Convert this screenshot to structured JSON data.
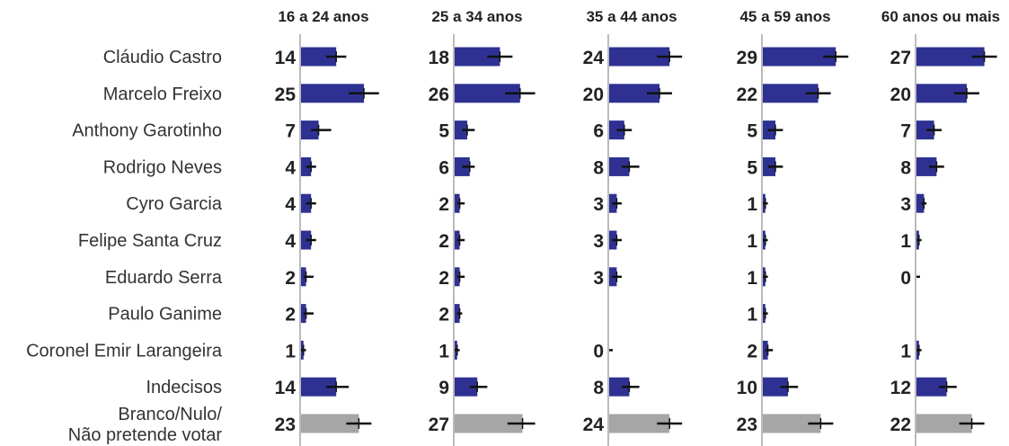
{
  "chart_data": {
    "type": "bar",
    "orientation": "horizontal",
    "categories": [
      "Cláudio Castro",
      "Marcelo Freixo",
      "Anthony Garotinho",
      "Rodrigo Neves",
      "Cyro Garcia",
      "Felipe Santa Cruz",
      "Eduardo Serra",
      "Paulo Ganime",
      "Coronel Emir Larangeira",
      "Indecisos",
      [
        "Branco/Nulo/",
        "Não pretende votar"
      ]
    ],
    "series": [
      {
        "name": "16 a 24 anos",
        "values": [
          14,
          25,
          7,
          4,
          4,
          4,
          2,
          2,
          1,
          14,
          23
        ],
        "error_low": [
          10,
          19,
          4,
          2,
          2,
          2,
          1,
          1,
          0,
          10,
          18
        ],
        "error_high": [
          18,
          31,
          12,
          6,
          6,
          6,
          5,
          5,
          2,
          19,
          28
        ]
      },
      {
        "name": "25 a 34 anos",
        "values": [
          18,
          26,
          5,
          6,
          2,
          2,
          2,
          2,
          1,
          9,
          27
        ],
        "error_low": [
          13,
          20,
          3,
          3,
          1,
          1,
          1,
          1,
          0,
          6,
          21
        ],
        "error_high": [
          23,
          32,
          8,
          8,
          4,
          4,
          4,
          3,
          2,
          13,
          32
        ]
      },
      {
        "name": "35 a 44 anos",
        "values": [
          24,
          20,
          6,
          8,
          3,
          3,
          3,
          null,
          0,
          8,
          24
        ],
        "error_low": [
          19,
          15,
          3,
          5,
          1,
          1,
          1,
          null,
          0,
          5,
          19
        ],
        "error_high": [
          29,
          25,
          9,
          12,
          5,
          5,
          5,
          null,
          1,
          12,
          29
        ]
      },
      {
        "name": "45 a 59 anos",
        "values": [
          29,
          22,
          5,
          5,
          1,
          1,
          1,
          1,
          2,
          10,
          23
        ],
        "error_low": [
          24,
          17,
          2,
          2,
          0,
          0,
          0,
          0,
          1,
          7,
          18
        ],
        "error_high": [
          34,
          27,
          8,
          8,
          2,
          2,
          2,
          2,
          4,
          14,
          28
        ]
      },
      {
        "name": "60 anos ou mais",
        "values": [
          27,
          20,
          7,
          8,
          3,
          1,
          0,
          null,
          1,
          12,
          22
        ],
        "error_low": [
          22,
          15,
          4,
          5,
          2,
          0,
          0,
          null,
          0,
          9,
          17
        ],
        "error_high": [
          32,
          25,
          10,
          11,
          4,
          2,
          1,
          null,
          2,
          16,
          27
        ]
      }
    ],
    "xlim": [
      0,
      35
    ],
    "bar_color": "#2e3192",
    "other_bar_color": "#a6a6a6",
    "error_color": "#111111",
    "axis_color": "#bbbbbb",
    "grid": false,
    "legend": "none"
  }
}
